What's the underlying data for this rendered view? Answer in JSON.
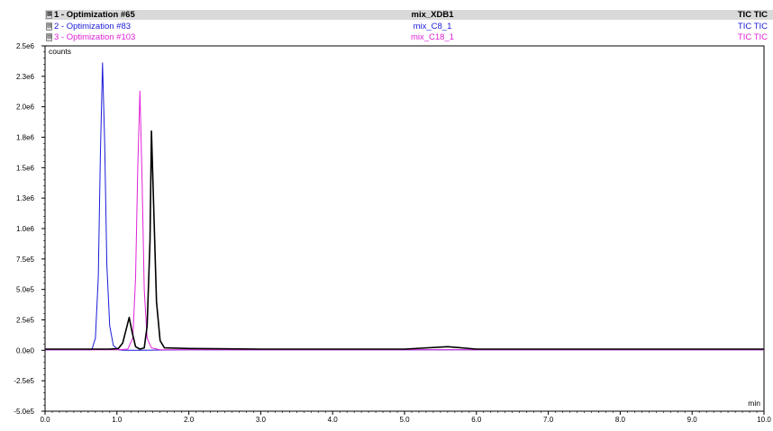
{
  "legend": [
    {
      "name": "1 - Optimization #65",
      "sample": "mix_XDB1",
      "trace": "TIC TIC",
      "color": "#000000"
    },
    {
      "name": "2 - Optimization #83",
      "sample": "mix_C8_1",
      "trace": "TIC TIC",
      "color": "#1a1ad8"
    },
    {
      "name": "3 - Optimization #103",
      "sample": "mix_C18_1",
      "trace": "TIC TIC",
      "color": "#e020d8"
    }
  ],
  "chart_data": {
    "type": "line",
    "xlabel": "min",
    "ylabel": "counts",
    "xlim": [
      0.0,
      10.0
    ],
    "ylim": [
      -500000,
      2500000
    ],
    "xticks": [
      "0.0",
      "1.0",
      "2.0",
      "3.0",
      "4.0",
      "5.0",
      "6.0",
      "7.0",
      "8.0",
      "9.0",
      "10.0"
    ],
    "yticks": [
      "-5.0e5",
      "-2.5e5",
      "0.0e0",
      "2.5e5",
      "5.0e5",
      "7.5e5",
      "1.0e6",
      "1.3e6",
      "1.5e6",
      "1.8e6",
      "2.0e6",
      "2.3e6",
      "2.5e6"
    ],
    "series": [
      {
        "name": "1 - Optimization #65",
        "color": "#000000",
        "x": [
          0.0,
          0.9,
          1.02,
          1.08,
          1.14,
          1.17,
          1.21,
          1.26,
          1.32,
          1.38,
          1.42,
          1.46,
          1.48,
          1.51,
          1.55,
          1.6,
          1.66,
          2.0,
          3.0,
          4.0,
          5.0,
          5.6,
          6.0,
          7.0,
          8.0,
          9.0,
          10.0
        ],
        "y": [
          10000,
          10000,
          15000,
          60000,
          200000,
          270000,
          150000,
          30000,
          10000,
          20000,
          200000,
          900000,
          1800000,
          1200000,
          400000,
          80000,
          20000,
          15000,
          10000,
          10000,
          10000,
          30000,
          10000,
          10000,
          10000,
          10000,
          10000
        ]
      },
      {
        "name": "2 - Optimization #83",
        "color": "#1a1ad8",
        "x": [
          0.0,
          0.65,
          0.7,
          0.74,
          0.77,
          0.8,
          0.83,
          0.86,
          0.9,
          0.95,
          1.02,
          1.1,
          1.3,
          2.0,
          3.0,
          4.0,
          5.0,
          6.0,
          7.0,
          8.0,
          9.0,
          10.0
        ],
        "y": [
          5000,
          5000,
          100000,
          600000,
          1600000,
          2360000,
          1700000,
          700000,
          200000,
          40000,
          5000,
          0,
          0,
          5000,
          5000,
          5000,
          5000,
          5000,
          5000,
          5000,
          5000,
          5000
        ]
      },
      {
        "name": "3 - Optimization #103",
        "color": "#e020d8",
        "x": [
          0.0,
          1.0,
          1.15,
          1.22,
          1.26,
          1.29,
          1.32,
          1.35,
          1.38,
          1.42,
          1.48,
          1.6,
          2.0,
          3.0,
          4.0,
          5.0,
          6.0,
          7.0,
          8.0,
          9.0,
          10.0
        ],
        "y": [
          5000,
          5000,
          10000,
          100000,
          600000,
          1500000,
          2130000,
          1400000,
          500000,
          100000,
          20000,
          5000,
          5000,
          5000,
          5000,
          5000,
          5000,
          5000,
          5000,
          5000,
          5000
        ]
      }
    ]
  }
}
